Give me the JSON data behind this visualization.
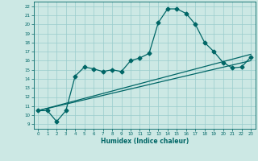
{
  "xlabel": "Humidex (Indice chaleur)",
  "bg_color": "#cce8e4",
  "grid_color": "#99cccc",
  "line_color": "#006666",
  "xlim": [
    -0.5,
    23.5
  ],
  "ylim": [
    8.5,
    22.5
  ],
  "xticks": [
    0,
    1,
    2,
    3,
    4,
    5,
    6,
    7,
    8,
    9,
    10,
    11,
    12,
    13,
    14,
    15,
    16,
    17,
    18,
    19,
    20,
    21,
    22,
    23
  ],
  "yticks": [
    9,
    10,
    11,
    12,
    13,
    14,
    15,
    16,
    17,
    18,
    19,
    20,
    21,
    22
  ],
  "curve1_x": [
    0,
    1,
    2,
    3,
    4,
    5,
    6,
    7,
    8,
    9,
    10,
    11,
    12,
    13,
    14,
    15,
    16,
    17,
    18,
    19,
    20,
    21,
    22,
    23
  ],
  "curve1_y": [
    10.5,
    10.5,
    9.3,
    10.5,
    14.3,
    15.3,
    15.1,
    14.8,
    15.0,
    14.8,
    16.0,
    16.3,
    16.8,
    20.2,
    21.7,
    21.7,
    21.2,
    20.0,
    18.0,
    17.0,
    15.8,
    15.2,
    15.3,
    16.4
  ],
  "curve2_x": [
    0,
    23
  ],
  "curve2_y": [
    10.5,
    16.0
  ],
  "curve3_x": [
    0,
    23
  ],
  "curve3_y": [
    10.5,
    16.7
  ],
  "markersize": 2.5,
  "linewidth": 0.9
}
